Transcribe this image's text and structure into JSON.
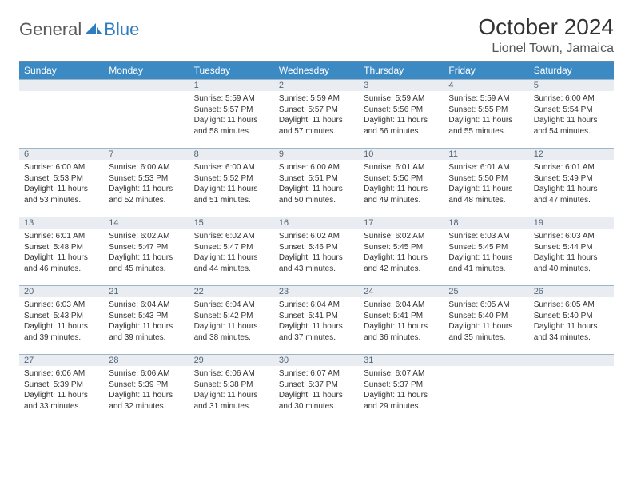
{
  "logo": {
    "text1": "General",
    "text2": "Blue"
  },
  "title": "October 2024",
  "location": "Lionel Town, Jamaica",
  "colors": {
    "header_bg": "#3b8ac4",
    "header_fg": "#ffffff",
    "daynum_bg": "#e9edf1",
    "daynum_fg": "#556677",
    "grid_line": "#9fb5c9",
    "divider": "#6a88a5",
    "logo_gray": "#5a5a5a",
    "logo_blue": "#2f7dc0"
  },
  "weekdays": [
    "Sunday",
    "Monday",
    "Tuesday",
    "Wednesday",
    "Thursday",
    "Friday",
    "Saturday"
  ],
  "weeks": [
    [
      null,
      null,
      {
        "n": "1",
        "sr": "5:59 AM",
        "ss": "5:57 PM",
        "dl": "11 hours and 58 minutes."
      },
      {
        "n": "2",
        "sr": "5:59 AM",
        "ss": "5:57 PM",
        "dl": "11 hours and 57 minutes."
      },
      {
        "n": "3",
        "sr": "5:59 AM",
        "ss": "5:56 PM",
        "dl": "11 hours and 56 minutes."
      },
      {
        "n": "4",
        "sr": "5:59 AM",
        "ss": "5:55 PM",
        "dl": "11 hours and 55 minutes."
      },
      {
        "n": "5",
        "sr": "6:00 AM",
        "ss": "5:54 PM",
        "dl": "11 hours and 54 minutes."
      }
    ],
    [
      {
        "n": "6",
        "sr": "6:00 AM",
        "ss": "5:53 PM",
        "dl": "11 hours and 53 minutes."
      },
      {
        "n": "7",
        "sr": "6:00 AM",
        "ss": "5:53 PM",
        "dl": "11 hours and 52 minutes."
      },
      {
        "n": "8",
        "sr": "6:00 AM",
        "ss": "5:52 PM",
        "dl": "11 hours and 51 minutes."
      },
      {
        "n": "9",
        "sr": "6:00 AM",
        "ss": "5:51 PM",
        "dl": "11 hours and 50 minutes."
      },
      {
        "n": "10",
        "sr": "6:01 AM",
        "ss": "5:50 PM",
        "dl": "11 hours and 49 minutes."
      },
      {
        "n": "11",
        "sr": "6:01 AM",
        "ss": "5:50 PM",
        "dl": "11 hours and 48 minutes."
      },
      {
        "n": "12",
        "sr": "6:01 AM",
        "ss": "5:49 PM",
        "dl": "11 hours and 47 minutes."
      }
    ],
    [
      {
        "n": "13",
        "sr": "6:01 AM",
        "ss": "5:48 PM",
        "dl": "11 hours and 46 minutes."
      },
      {
        "n": "14",
        "sr": "6:02 AM",
        "ss": "5:47 PM",
        "dl": "11 hours and 45 minutes."
      },
      {
        "n": "15",
        "sr": "6:02 AM",
        "ss": "5:47 PM",
        "dl": "11 hours and 44 minutes."
      },
      {
        "n": "16",
        "sr": "6:02 AM",
        "ss": "5:46 PM",
        "dl": "11 hours and 43 minutes."
      },
      {
        "n": "17",
        "sr": "6:02 AM",
        "ss": "5:45 PM",
        "dl": "11 hours and 42 minutes."
      },
      {
        "n": "18",
        "sr": "6:03 AM",
        "ss": "5:45 PM",
        "dl": "11 hours and 41 minutes."
      },
      {
        "n": "19",
        "sr": "6:03 AM",
        "ss": "5:44 PM",
        "dl": "11 hours and 40 minutes."
      }
    ],
    [
      {
        "n": "20",
        "sr": "6:03 AM",
        "ss": "5:43 PM",
        "dl": "11 hours and 39 minutes."
      },
      {
        "n": "21",
        "sr": "6:04 AM",
        "ss": "5:43 PM",
        "dl": "11 hours and 39 minutes."
      },
      {
        "n": "22",
        "sr": "6:04 AM",
        "ss": "5:42 PM",
        "dl": "11 hours and 38 minutes."
      },
      {
        "n": "23",
        "sr": "6:04 AM",
        "ss": "5:41 PM",
        "dl": "11 hours and 37 minutes."
      },
      {
        "n": "24",
        "sr": "6:04 AM",
        "ss": "5:41 PM",
        "dl": "11 hours and 36 minutes."
      },
      {
        "n": "25",
        "sr": "6:05 AM",
        "ss": "5:40 PM",
        "dl": "11 hours and 35 minutes."
      },
      {
        "n": "26",
        "sr": "6:05 AM",
        "ss": "5:40 PM",
        "dl": "11 hours and 34 minutes."
      }
    ],
    [
      {
        "n": "27",
        "sr": "6:06 AM",
        "ss": "5:39 PM",
        "dl": "11 hours and 33 minutes."
      },
      {
        "n": "28",
        "sr": "6:06 AM",
        "ss": "5:39 PM",
        "dl": "11 hours and 32 minutes."
      },
      {
        "n": "29",
        "sr": "6:06 AM",
        "ss": "5:38 PM",
        "dl": "11 hours and 31 minutes."
      },
      {
        "n": "30",
        "sr": "6:07 AM",
        "ss": "5:37 PM",
        "dl": "11 hours and 30 minutes."
      },
      {
        "n": "31",
        "sr": "6:07 AM",
        "ss": "5:37 PM",
        "dl": "11 hours and 29 minutes."
      },
      null,
      null
    ]
  ],
  "labels": {
    "sunrise": "Sunrise:",
    "sunset": "Sunset:",
    "daylight": "Daylight:"
  }
}
